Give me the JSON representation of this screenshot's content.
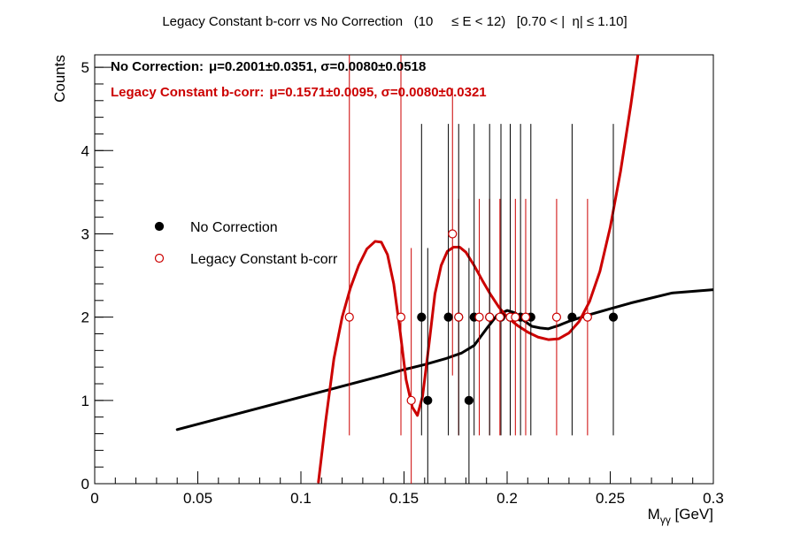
{
  "chart_data": {
    "type": "scatter",
    "title": "Legacy Constant b-corr vs No Correction   (10     ≤ E < 12)   [0.70 < |  η| ≤ 1.10]",
    "xlabel": "Mγγ [GeV]",
    "xlabel_main": "M",
    "xlabel_sub": "γγ",
    "xlabel_unit": " [GeV]",
    "ylabel": "Counts",
    "xlim": [
      0,
      0.3
    ],
    "ylim": [
      0,
      5.15
    ],
    "x_ticks": [
      0,
      0.05,
      0.1,
      0.15,
      0.2,
      0.25,
      0.3
    ],
    "x_tick_labels": [
      "0",
      "0.05",
      "0.1",
      "0.15",
      "0.2",
      "0.25",
      "0.3"
    ],
    "y_ticks": [
      0,
      1,
      2,
      3,
      4,
      5
    ],
    "y_tick_labels": [
      "0",
      "1",
      "2",
      "3",
      "4",
      "5"
    ],
    "grid": false,
    "legend_position": "middle-left",
    "series": [
      {
        "name": "No Correction",
        "color": "#000000",
        "marker": "filled-circle",
        "points": [
          {
            "x": 0.1585,
            "y": 2,
            "yerr": [
              1.42,
              2.32
            ]
          },
          {
            "x": 0.1615,
            "y": 1,
            "yerr": [
              1.0,
              1.83
            ]
          },
          {
            "x": 0.1715,
            "y": 2,
            "yerr": [
              1.42,
              2.32
            ]
          },
          {
            "x": 0.1765,
            "y": 2,
            "yerr": [
              1.42,
              2.32
            ]
          },
          {
            "x": 0.1815,
            "y": 1,
            "yerr": [
              1.0,
              1.83
            ]
          },
          {
            "x": 0.184,
            "y": 2,
            "yerr": [
              1.42,
              2.32
            ]
          },
          {
            "x": 0.1915,
            "y": 2,
            "yerr": [
              1.42,
              2.32
            ]
          },
          {
            "x": 0.197,
            "y": 2,
            "yerr": [
              1.42,
              2.32
            ]
          },
          {
            "x": 0.2015,
            "y": 2,
            "yerr": [
              1.42,
              2.32
            ]
          },
          {
            "x": 0.2065,
            "y": 2,
            "yerr": [
              1.42,
              2.32
            ]
          },
          {
            "x": 0.2115,
            "y": 2,
            "yerr": [
              1.42,
              2.32
            ]
          },
          {
            "x": 0.2315,
            "y": 2,
            "yerr": [
              1.42,
              2.32
            ]
          },
          {
            "x": 0.2515,
            "y": 2,
            "yerr": [
              1.42,
              2.32
            ]
          }
        ],
        "fit_color": "#000000",
        "fit_curve": {
          "x": [
            0.04,
            0.06,
            0.08,
            0.1,
            0.12,
            0.14,
            0.15,
            0.16,
            0.17,
            0.178,
            0.184,
            0.19,
            0.195,
            0.2,
            0.204,
            0.208,
            0.212,
            0.216,
            0.22,
            0.225,
            0.23,
            0.24,
            0.25,
            0.26,
            0.28,
            0.3
          ],
          "y": [
            0.65,
            0.78,
            0.91,
            1.04,
            1.17,
            1.3,
            1.37,
            1.43,
            1.5,
            1.57,
            1.66,
            1.86,
            2.02,
            2.08,
            2.05,
            1.96,
            1.89,
            1.87,
            1.86,
            1.9,
            1.95,
            2.03,
            2.1,
            2.17,
            2.29,
            2.33
          ]
        }
      },
      {
        "name": "Legacy Constant b-corr",
        "color": "#cc0000",
        "marker": "open-circle",
        "points": [
          {
            "x": 0.1235,
            "y": 2,
            "yerr": [
              1.42,
              3.42
            ]
          },
          {
            "x": 0.1485,
            "y": 2,
            "yerr": [
              1.42,
              3.42
            ]
          },
          {
            "x": 0.1535,
            "y": 1,
            "yerr": [
              1.0,
              1.83
            ]
          },
          {
            "x": 0.1735,
            "y": 3,
            "yerr": [
              1.7,
              1.75
            ]
          },
          {
            "x": 0.1765,
            "y": 2,
            "yerr": [
              1.42,
              1.42
            ]
          },
          {
            "x": 0.1865,
            "y": 2,
            "yerr": [
              1.42,
              1.42
            ]
          },
          {
            "x": 0.1915,
            "y": 2,
            "yerr": [
              1.42,
              1.42
            ]
          },
          {
            "x": 0.1965,
            "y": 2,
            "yerr": [
              1.42,
              1.42
            ]
          },
          {
            "x": 0.2015,
            "y": 2,
            "yerr": [
              1.42,
              1.42
            ]
          },
          {
            "x": 0.204,
            "y": 2,
            "yerr": [
              1.42,
              1.42
            ]
          },
          {
            "x": 0.209,
            "y": 2,
            "yerr": [
              1.42,
              1.42
            ]
          },
          {
            "x": 0.224,
            "y": 2,
            "yerr": [
              1.42,
              1.42
            ]
          },
          {
            "x": 0.239,
            "y": 2,
            "yerr": [
              1.42,
              1.42
            ]
          }
        ],
        "fit_color": "#cc0000",
        "fit_curve": {
          "x": [
            0.1085,
            0.112,
            0.116,
            0.12,
            0.124,
            0.128,
            0.132,
            0.136,
            0.139,
            0.142,
            0.145,
            0.148,
            0.151,
            0.154,
            0.1565,
            0.159,
            0.162,
            0.165,
            0.168,
            0.171,
            0.174,
            0.177,
            0.18,
            0.184,
            0.188,
            0.192,
            0.196,
            0.2,
            0.205,
            0.21,
            0.215,
            0.22,
            0.225,
            0.23,
            0.235,
            0.24,
            0.245,
            0.25,
            0.255,
            0.26,
            0.264,
            0.2675
          ],
          "y": [
            0.02,
            0.75,
            1.5,
            2.0,
            2.35,
            2.62,
            2.82,
            2.91,
            2.9,
            2.75,
            2.4,
            1.85,
            1.25,
            0.92,
            0.82,
            1.05,
            1.65,
            2.28,
            2.62,
            2.79,
            2.84,
            2.84,
            2.78,
            2.62,
            2.44,
            2.27,
            2.12,
            2.0,
            1.9,
            1.82,
            1.76,
            1.73,
            1.74,
            1.81,
            1.95,
            2.19,
            2.55,
            3.08,
            3.75,
            4.55,
            5.25,
            5.95
          ]
        }
      }
    ],
    "annotations": [
      {
        "label": "No Correction:",
        "mu": "μ=0.2001±0.0351",
        "sigma": "σ=0.0080±0.0518",
        "color": "#000000"
      },
      {
        "label": "Legacy Constant b-corr:",
        "mu": "μ=0.1571±0.0095",
        "sigma": "σ=0.0080±0.0321",
        "color": "#cc0000"
      }
    ]
  }
}
